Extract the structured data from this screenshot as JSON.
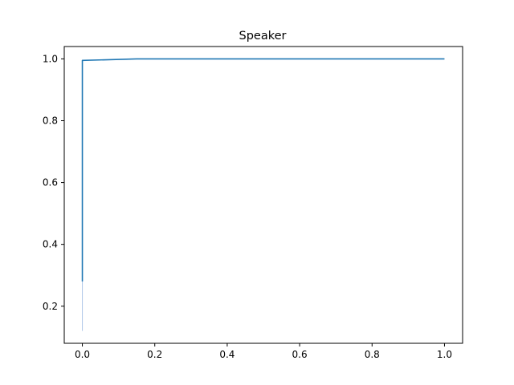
{
  "chart_data": {
    "type": "line",
    "title": "Speaker",
    "xlabel": "",
    "ylabel": "",
    "xlim": [
      -0.05,
      1.05
    ],
    "ylim": [
      0.08,
      1.04
    ],
    "x_ticks": [
      0.0,
      0.2,
      0.4,
      0.6,
      0.8,
      1.0
    ],
    "x_tick_labels": [
      "0.0",
      "0.2",
      "0.4",
      "0.6",
      "0.8",
      "1.0"
    ],
    "y_ticks": [
      0.2,
      0.4,
      0.6,
      0.8,
      1.0
    ],
    "y_tick_labels": [
      "0.2",
      "0.4",
      "0.6",
      "0.8",
      "1.0"
    ],
    "grid": false,
    "colors": {
      "line": "#1f77b4",
      "faint": "#aec7e8"
    },
    "series": [
      {
        "x": [
          0.0,
          0.0,
          0.0,
          0.15,
          1.0
        ],
        "y": [
          0.28,
          0.28,
          0.995,
          1.0,
          1.0
        ]
      }
    ],
    "faint_segment": {
      "x": [
        0.0,
        0.0
      ],
      "y": [
        0.12,
        0.28
      ]
    }
  }
}
